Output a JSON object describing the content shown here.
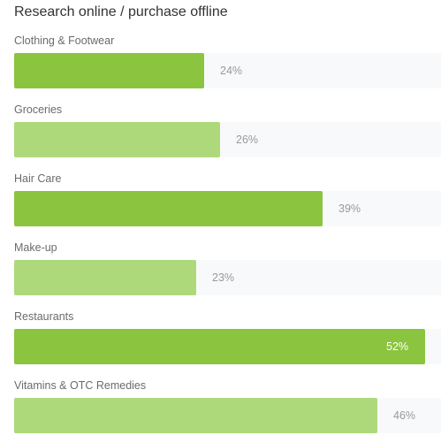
{
  "chart_data": {
    "type": "bar",
    "orientation": "horizontal",
    "title": "Research online / purchase offline",
    "categories": [
      "Clothing & Footwear",
      "Groceries",
      "Hair Care",
      "Make-up",
      "Restaurants",
      "Vitamins & OTC Remedies"
    ],
    "values": [
      24,
      26,
      39,
      23,
      52,
      46
    ],
    "value_labels": [
      "24%",
      "26%",
      "39%",
      "23%",
      "52%",
      "46%"
    ],
    "unit": "%",
    "xlim": [
      0,
      54
    ],
    "grid": false,
    "legend": "none",
    "colors": {
      "bar_dark": "#8bc43f",
      "bar_light": "#aed97a",
      "track": "#f8f9fa",
      "label_outside": "#9a9a9a",
      "label_inside": "#ffffff",
      "title": "#333333",
      "category_label": "#6b6b6b"
    }
  }
}
